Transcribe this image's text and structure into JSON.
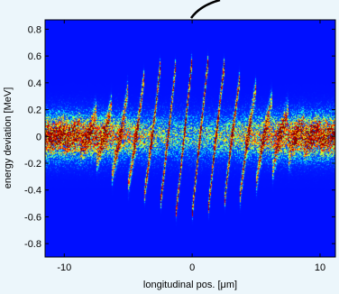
{
  "chart_data": {
    "type": "heatmap",
    "title": "",
    "xlabel": "longitudinal pos. [μm]",
    "ylabel": "energy deviation [MeV]",
    "xlim": [
      -11.5,
      11.2
    ],
    "ylim": [
      -0.9,
      0.87
    ],
    "x_ticks": [
      -10,
      0,
      10
    ],
    "y_ticks": [
      0.8,
      0.6,
      0.4,
      0.2,
      0,
      -0.2,
      -0.4,
      -0.6,
      -0.8
    ],
    "x_tick_labels": [
      "-10",
      "0",
      "10"
    ],
    "y_tick_labels": [
      "0.8",
      "0.6",
      "0.4",
      "0.2",
      "0",
      "-0.2",
      "-0.4",
      "-0.6",
      "-0.8"
    ],
    "grid": false,
    "colormap": "jet",
    "background_color": "#00008f",
    "pattern": {
      "description": "particle phase-space density: broad band around 0 MeV with periodic slanted microbunch stripes",
      "band_sigma_mev": 0.11,
      "stripe_period_um": 1.25,
      "stripe_amplitude_mev": 0.58,
      "envelope_sigma_um": 5.2
    }
  }
}
